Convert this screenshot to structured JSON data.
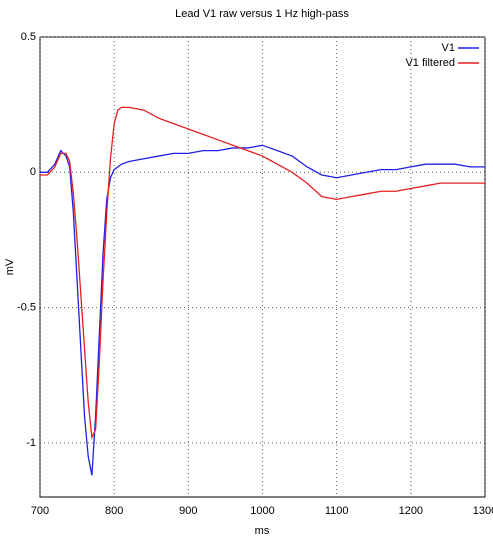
{
  "chart_data": {
    "type": "line",
    "title": "Lead V1 raw versus 1 Hz high-pass",
    "x_label": "ms",
    "y_label": "mV",
    "x": [
      700,
      710,
      720,
      728,
      735,
      740,
      745,
      750,
      755,
      760,
      765,
      770,
      775,
      780,
      785,
      790,
      795,
      800,
      805,
      810,
      820,
      840,
      860,
      880,
      900,
      920,
      940,
      960,
      980,
      1000,
      1010,
      1020,
      1040,
      1060,
      1080,
      1100,
      1120,
      1140,
      1160,
      1180,
      1200,
      1220,
      1240,
      1260,
      1280,
      1300
    ],
    "series": [
      {
        "name": "V1",
        "color": "#1f1fe6",
        "values": [
          0,
          0,
          0.03,
          0.08,
          0.06,
          0.02,
          -0.15,
          -0.4,
          -0.65,
          -0.9,
          -1.05,
          -1.12,
          -0.9,
          -0.6,
          -0.3,
          -0.1,
          -0.02,
          0.01,
          0.02,
          0.03,
          0.04,
          0.05,
          0.06,
          0.07,
          0.07,
          0.08,
          0.08,
          0.09,
          0.09,
          0.1,
          0.09,
          0.08,
          0.06,
          0.02,
          -0.01,
          -0.02,
          -0.01,
          0,
          0.01,
          0.01,
          0.02,
          0.03,
          0.03,
          0.03,
          0.02,
          0.02
        ]
      },
      {
        "name": "V1 filtered",
        "color": "#e61f1f",
        "values": [
          -0.01,
          -0.01,
          0.02,
          0.07,
          0.07,
          0.04,
          -0.08,
          -0.25,
          -0.45,
          -0.65,
          -0.85,
          -0.98,
          -0.95,
          -0.7,
          -0.4,
          -0.15,
          0.05,
          0.18,
          0.23,
          0.24,
          0.24,
          0.23,
          0.2,
          0.18,
          0.16,
          0.14,
          0.12,
          0.1,
          0.08,
          0.06,
          0.045,
          0.03,
          0,
          -0.04,
          -0.09,
          -0.1,
          -0.09,
          -0.08,
          -0.07,
          -0.07,
          -0.06,
          -0.05,
          -0.04,
          -0.04,
          -0.04,
          -0.04
        ]
      }
    ],
    "xlim": [
      700,
      1300
    ],
    "ylim": [
      -1.2,
      0.5
    ],
    "xticks": [
      700,
      800,
      900,
      1000,
      1100,
      1200,
      1300
    ],
    "yticks": [
      -1,
      -0.5,
      0,
      0.5
    ],
    "grid": true,
    "legend": "top-right"
  }
}
